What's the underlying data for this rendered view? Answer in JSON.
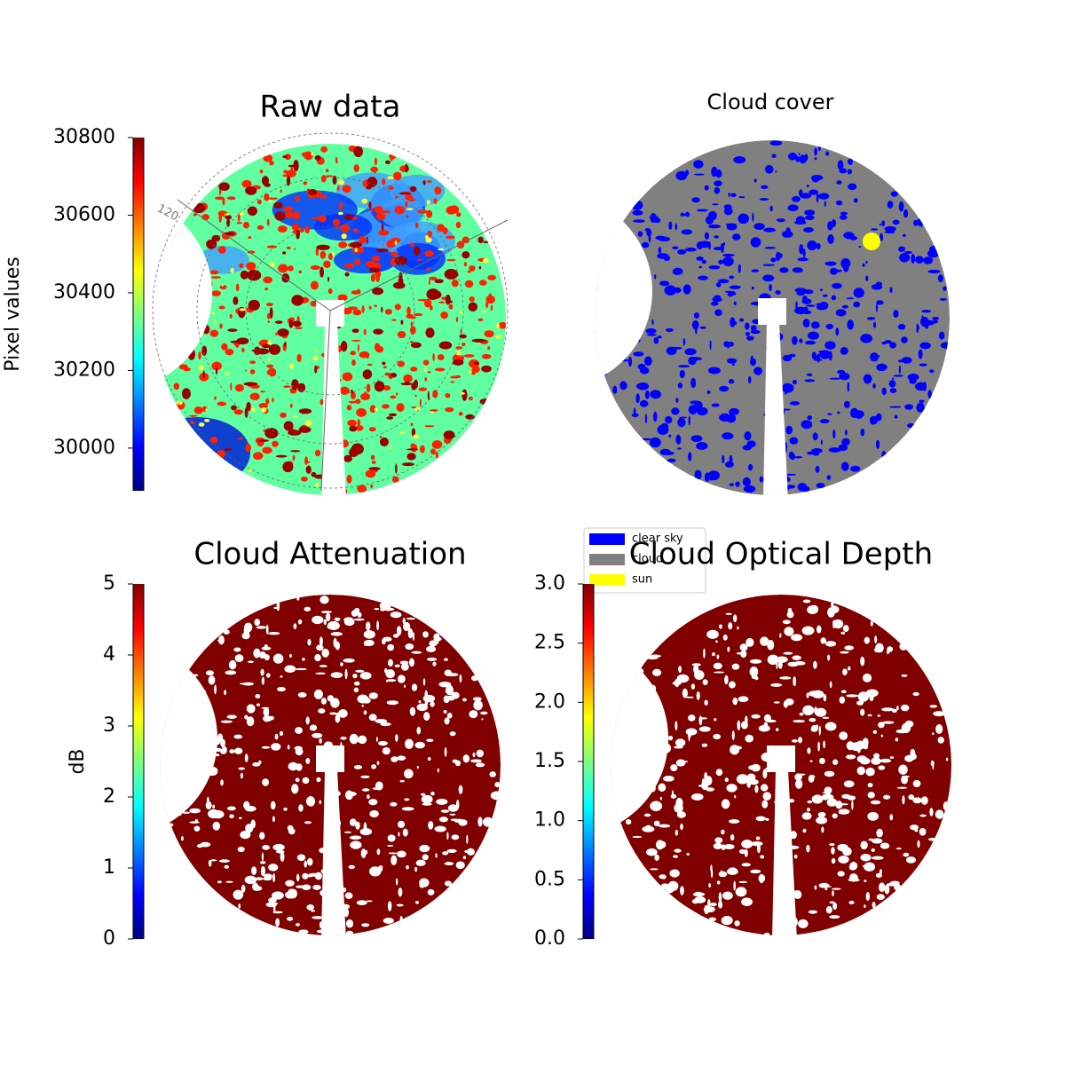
{
  "chart_data": [
    {
      "type": "image",
      "title": "Raw data",
      "colorbar_label": "Pixel values",
      "colormap": "jet",
      "clim": [
        29890,
        30800
      ],
      "cticks": [
        30000,
        30200,
        30400,
        30600,
        30800
      ],
      "annotations": [
        "120"
      ]
    },
    {
      "type": "image",
      "title": "Cloud cover",
      "legend": [
        {
          "name": "clear sky",
          "color": "#0000ff"
        },
        {
          "name": "cloud",
          "color": "#808080"
        },
        {
          "name": "sun",
          "color": "#ffff00"
        }
      ]
    },
    {
      "type": "image",
      "title": "Cloud Attenuation",
      "colorbar_label": "dB",
      "colormap": "jet",
      "clim": [
        0,
        5
      ],
      "cticks": [
        0,
        1,
        2,
        3,
        4,
        5
      ]
    },
    {
      "type": "image",
      "title": "Cloud Optical Depth",
      "colormap": "jet",
      "clim": [
        0,
        3
      ],
      "cticks": [
        {
          "value": 0,
          "label": "0.0"
        },
        0.5,
        {
          "value": 1,
          "label": "1.0"
        },
        1.5,
        {
          "value": 2,
          "label": "2.0"
        },
        2.5,
        {
          "value": 3,
          "label": "3.0"
        }
      ]
    }
  ]
}
